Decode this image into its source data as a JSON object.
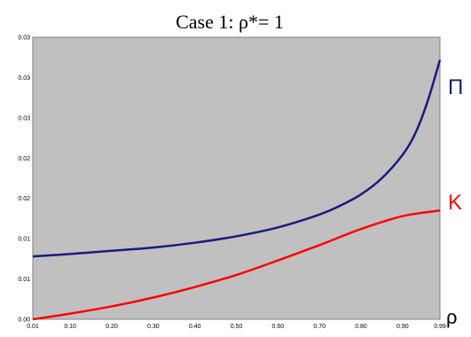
{
  "chart_data": {
    "type": "line",
    "title": "Case 1: ρ*= 1",
    "xlabel": "ρ",
    "ylabel": "",
    "x_ticks": [
      "0.01",
      "0.10",
      "0.20",
      "0.30",
      "0.40",
      "0.50",
      "0.60",
      "0.70",
      "0.80",
      "0.90",
      "0.99"
    ],
    "x_tick_values": [
      0.01,
      0.1,
      0.2,
      0.3,
      0.4,
      0.5,
      0.6,
      0.7,
      0.8,
      0.9,
      0.99
    ],
    "xlim": [
      0.01,
      0.99
    ],
    "y_tick_values": [
      0.0,
      0.005,
      0.01,
      0.015,
      0.02,
      0.025,
      0.03,
      0.035
    ],
    "y_tick_labels": [
      "0.00",
      "0.01",
      "0.01",
      "0.02",
      "0.02",
      "0.03",
      "0.03",
      "0.03"
    ],
    "ylim": [
      0,
      0.035
    ],
    "grid": false,
    "background": "#c0c0c0",
    "series": [
      {
        "name": "Π",
        "color": "#1a1a80",
        "x": [
          0.01,
          0.1,
          0.2,
          0.3,
          0.4,
          0.5,
          0.6,
          0.7,
          0.75,
          0.8,
          0.85,
          0.9,
          0.93,
          0.96,
          0.99
        ],
        "y": [
          0.0078,
          0.0081,
          0.0085,
          0.0089,
          0.0095,
          0.0103,
          0.0114,
          0.013,
          0.0141,
          0.0155,
          0.0175,
          0.0204,
          0.023,
          0.027,
          0.0322
        ]
      },
      {
        "name": "K",
        "color": "#ff0000",
        "x": [
          0.01,
          0.1,
          0.2,
          0.3,
          0.4,
          0.5,
          0.6,
          0.7,
          0.8,
          0.9,
          0.99
        ],
        "y": [
          0.0,
          0.0007,
          0.0016,
          0.0027,
          0.004,
          0.0055,
          0.0073,
          0.0092,
          0.0112,
          0.0128,
          0.0135
        ]
      }
    ]
  }
}
